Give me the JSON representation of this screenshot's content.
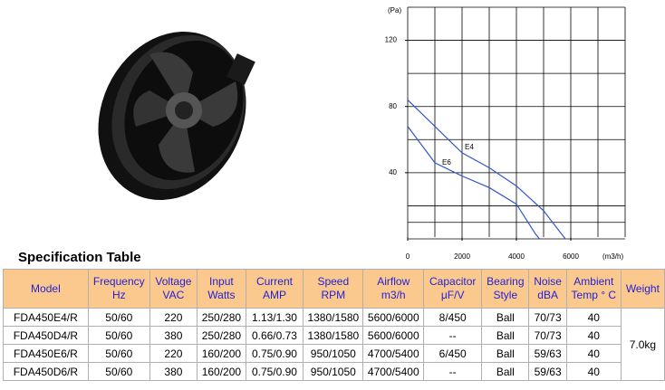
{
  "chart_data": {
    "type": "line",
    "y_unit": "(Pa)",
    "x_unit": "(m3/h)",
    "xlim": [
      0,
      8000
    ],
    "ylim": [
      0,
      140
    ],
    "xticks": [
      0,
      2000,
      4000,
      6000
    ],
    "yticks": [
      40,
      80,
      120
    ],
    "series": [
      {
        "name": "E4",
        "color": "#3355cc",
        "x": [
          0,
          1000,
          2000,
          3000,
          4000,
          5000,
          5800
        ],
        "values": [
          84,
          68,
          52,
          43,
          32,
          17,
          0
        ]
      },
      {
        "name": "E6",
        "color": "#3355cc",
        "x": [
          0,
          1000,
          2000,
          3000,
          4000,
          4700,
          4850
        ],
        "values": [
          68,
          46,
          38,
          31,
          21,
          3,
          0
        ]
      }
    ]
  },
  "spec_table": {
    "title": "Specification Table",
    "headers": [
      [
        "Model"
      ],
      [
        "Frequency",
        "Hz"
      ],
      [
        "Voltage",
        "VAC"
      ],
      [
        "Input",
        "Watts"
      ],
      [
        "Current",
        "AMP"
      ],
      [
        "Speed",
        "RPM"
      ],
      [
        "Airflow",
        "m3/h"
      ],
      [
        "Capacitor",
        "μF/V"
      ],
      [
        "Bearing",
        "Style"
      ],
      [
        "Noise",
        "dBA"
      ],
      [
        "Ambient",
        "Temp ° C"
      ],
      [
        "Weight"
      ]
    ],
    "rows": [
      [
        "FDA450E4/R",
        "50/60",
        "220",
        "250/280",
        "1.13/1.30",
        "1380/1580",
        "5600/6000",
        "8/450",
        "Ball",
        "70/73",
        "40"
      ],
      [
        "FDA450D4/R",
        "50/60",
        "380",
        "250/280",
        "0.66/0.73",
        "1380/1580",
        "5600/6000",
        "--",
        "Ball",
        "70/73",
        "40"
      ],
      [
        "FDA450E6/R",
        "50/60",
        "220",
        "160/200",
        "0.75/0.90",
        "950/1050",
        "4700/5400",
        "6/450",
        "Ball",
        "59/63",
        "40"
      ],
      [
        "FDA450D6/R",
        "50/60",
        "380",
        "160/200",
        "0.75/0.90",
        "950/1050",
        "4700/5400",
        "--",
        "Ball",
        "59/63",
        "40"
      ]
    ],
    "weight": "7.0kg"
  }
}
